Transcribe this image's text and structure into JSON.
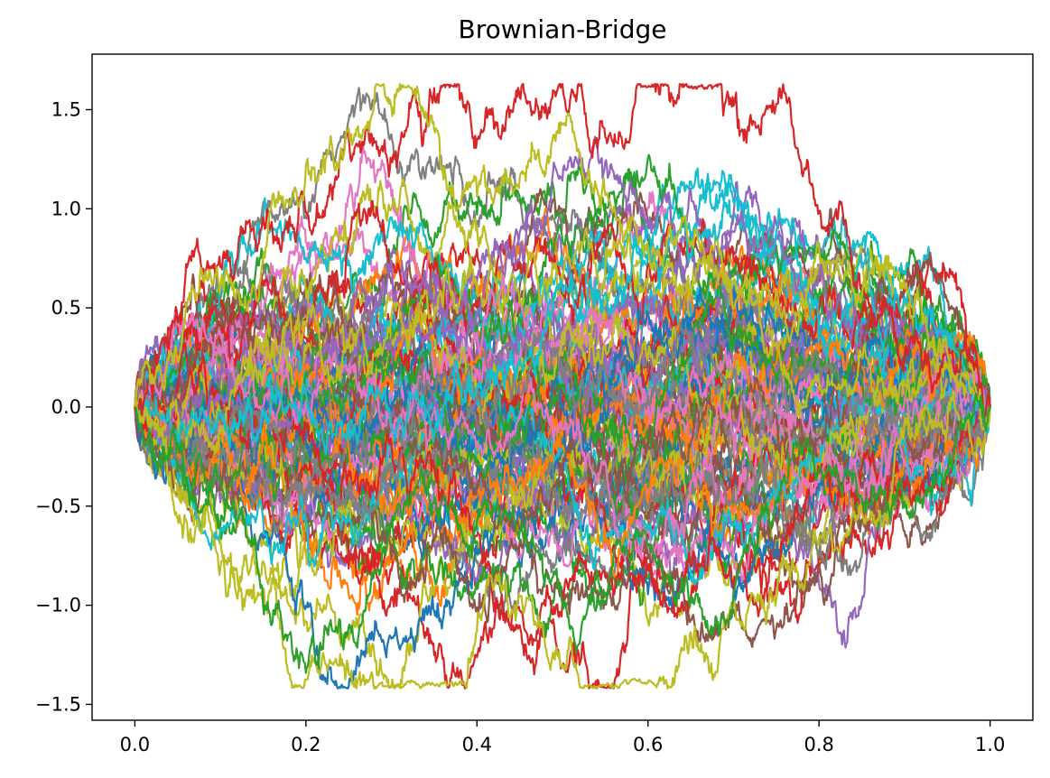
{
  "chart_data": {
    "type": "line",
    "title": "Brownian-Bridge",
    "xlabel": "",
    "ylabel": "",
    "xlim": [
      -0.05,
      1.05
    ],
    "ylim": [
      -1.58,
      1.78
    ],
    "xticks": [
      0.0,
      0.2,
      0.4,
      0.6,
      0.8,
      1.0
    ],
    "xtick_labels": [
      "0.0",
      "0.2",
      "0.4",
      "0.6",
      "0.8",
      "1.0"
    ],
    "yticks": [
      -1.5,
      -1.0,
      -0.5,
      0.0,
      0.5,
      1.0,
      1.5
    ],
    "ytick_labels": [
      "−1.5",
      "−1.0",
      "−0.5",
      "0.0",
      "0.5",
      "1.0",
      "1.5"
    ],
    "grid": false,
    "legend": "none",
    "palette": [
      "#1f77b4",
      "#ff7f0e",
      "#2ca02c",
      "#d62728",
      "#9467bd",
      "#8c564b",
      "#e377c2",
      "#7f7f7f",
      "#bcbd22",
      "#17becf"
    ],
    "series_count": 100,
    "steps_per_path": 1000,
    "x_start": 0.0,
    "x_end": 1.0,
    "y_start": 0.0,
    "y_end": 0.0,
    "highlighted_paths": [
      {
        "color": "#d62728",
        "peak_x": 0.685,
        "peak_y": 1.63
      },
      {
        "color": "#bcbd22",
        "trough_x": 0.28,
        "trough_y": -1.42
      },
      {
        "color": "#bcbd22",
        "peak_x": 0.275,
        "peak_y": 1.44
      },
      {
        "color": "#2ca02c",
        "trough_x": 0.16,
        "trough_y": -1.1
      }
    ]
  }
}
